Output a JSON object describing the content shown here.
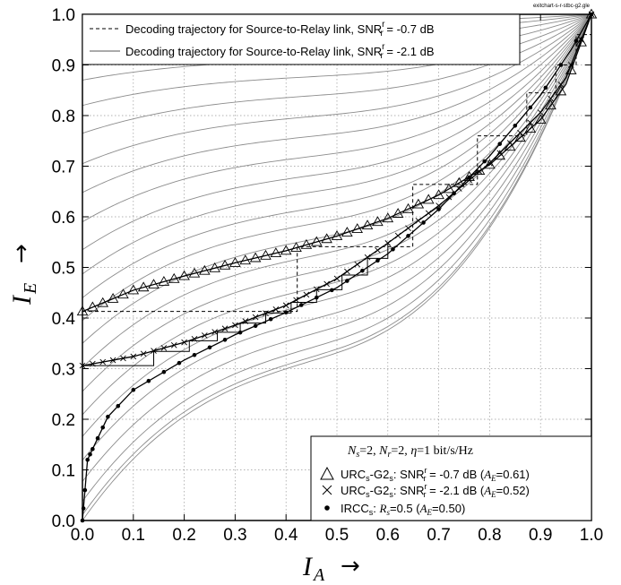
{
  "chart_data": {
    "type": "line",
    "title": "",
    "file_tag": "exitchart-s-r-stbc-g2.gle",
    "xlabel": {
      "symbol": "I",
      "subscript": "A",
      "arrow": "→"
    },
    "ylabel": {
      "symbol": "I",
      "subscript": "E",
      "arrow": "→"
    },
    "xlim": [
      0.0,
      1.0
    ],
    "ylim": [
      0.0,
      1.0
    ],
    "xticks": [
      "0.0",
      "0.1",
      "0.2",
      "0.3",
      "0.4",
      "0.5",
      "0.6",
      "0.7",
      "0.8",
      "0.9",
      "1.0"
    ],
    "yticks": [
      "0.0",
      "0.1",
      "0.2",
      "0.3",
      "0.4",
      "0.5",
      "0.6",
      "0.7",
      "0.8",
      "0.9",
      "1.0"
    ],
    "grid": true,
    "legend_top": {
      "placement": "top-left",
      "entries": [
        {
          "text": "Decoding trajectory for Source-to-Relay link, SNR",
          "sup": "r",
          "sub": "r",
          "tail": " = -0.7 dB",
          "style": "dashed"
        },
        {
          "text": "Decoding trajectory for Source-to-Relay link, SNR",
          "sup": "r",
          "sub": "r",
          "tail": " = -2.1 dB",
          "style": "solid"
        }
      ]
    },
    "legend_bottom": {
      "placement": "bottom-right",
      "header": {
        "ns": "N",
        "ns_sub": "s",
        "ns_val": "=2, ",
        "nr": "N",
        "nr_sub": "r",
        "nr_val": "=2, ",
        "eta": "η",
        "eta_val": "=1 bit/s/Hz"
      },
      "entries": [
        {
          "marker": "triangle",
          "name": "URC",
          "name_sub": "s",
          "mid": "-G2",
          "mid_sub": "s",
          "snr": ": SNR",
          "snr_sup": "r",
          "snr_sub": "r",
          "val": " = -0.7 dB (",
          "ae": "A",
          "ae_sub": "E",
          "ae_val": "=0.61)"
        },
        {
          "marker": "cross",
          "name": "URC",
          "name_sub": "s",
          "mid": "-G2",
          "mid_sub": "s",
          "snr": ": SNR",
          "snr_sup": "r",
          "snr_sub": "r",
          "val": " = -2.1 dB (",
          "ae": "A",
          "ae_sub": "E",
          "ae_val": "=0.52)"
        },
        {
          "marker": "dot",
          "name": "IRCC",
          "name_sub": "s",
          "mid": ": ",
          "rs": "R",
          "rs_sub": "s",
          "rs_val": "=0.5 (",
          "ae": "A",
          "ae_sub": "E",
          "ae_val": "=0.50)"
        }
      ]
    },
    "series": [
      {
        "name": "URCs-G2s: SNRrr = -0.7 dB",
        "marker": "triangle",
        "points": [
          [
            0.0,
            0.413
          ],
          [
            0.1,
            0.455
          ],
          [
            0.2,
            0.483
          ],
          [
            0.3,
            0.509
          ],
          [
            0.4,
            0.533
          ],
          [
            0.5,
            0.562
          ],
          [
            0.6,
            0.597
          ],
          [
            0.7,
            0.643
          ],
          [
            0.8,
            0.703
          ],
          [
            0.9,
            0.792
          ],
          [
            0.95,
            0.862
          ],
          [
            1.0,
            1.0
          ]
        ]
      },
      {
        "name": "URCs-G2s: SNRrr = -2.1 dB",
        "marker": "cross",
        "points": [
          [
            0.0,
            0.306
          ],
          [
            0.1,
            0.324
          ],
          [
            0.2,
            0.352
          ],
          [
            0.3,
            0.386
          ],
          [
            0.4,
            0.425
          ],
          [
            0.5,
            0.478
          ],
          [
            0.6,
            0.548
          ],
          [
            0.7,
            0.622
          ],
          [
            0.8,
            0.706
          ],
          [
            0.9,
            0.806
          ],
          [
            0.95,
            0.875
          ],
          [
            1.0,
            1.0
          ]
        ]
      },
      {
        "name": "IRCCs: Rs=0.5",
        "marker": "dot",
        "points": [
          [
            0.0,
            0.0
          ],
          [
            0.01,
            0.12
          ],
          [
            0.05,
            0.205
          ],
          [
            0.1,
            0.258
          ],
          [
            0.2,
            0.317
          ],
          [
            0.3,
            0.367
          ],
          [
            0.4,
            0.411
          ],
          [
            0.5,
            0.46
          ],
          [
            0.6,
            0.527
          ],
          [
            0.7,
            0.615
          ],
          [
            0.8,
            0.72
          ],
          [
            0.9,
            0.84
          ],
          [
            0.96,
            0.93
          ],
          [
            1.0,
            1.0
          ]
        ]
      },
      {
        "name": "Decoding trajectory -0.7 dB",
        "style": "dashed",
        "points": [
          [
            0.0,
            0.413
          ],
          [
            0.422,
            0.413
          ],
          [
            0.422,
            0.541
          ],
          [
            0.649,
            0.541
          ],
          [
            0.649,
            0.664
          ],
          [
            0.776,
            0.664
          ],
          [
            0.776,
            0.76
          ],
          [
            0.873,
            0.76
          ],
          [
            0.873,
            0.845
          ],
          [
            0.93,
            0.845
          ],
          [
            0.93,
            0.9
          ],
          [
            0.97,
            0.9
          ],
          [
            0.97,
            0.96
          ],
          [
            1.0,
            0.96
          ],
          [
            1.0,
            1.0
          ]
        ]
      },
      {
        "name": "Decoding trajectory -2.1 dB",
        "style": "solid",
        "points": [
          [
            0.0,
            0.306
          ],
          [
            0.14,
            0.306
          ],
          [
            0.14,
            0.334
          ],
          [
            0.21,
            0.334
          ],
          [
            0.21,
            0.355
          ],
          [
            0.265,
            0.355
          ],
          [
            0.265,
            0.372
          ],
          [
            0.31,
            0.372
          ],
          [
            0.31,
            0.39
          ],
          [
            0.36,
            0.39
          ],
          [
            0.36,
            0.41
          ],
          [
            0.41,
            0.41
          ],
          [
            0.41,
            0.431
          ],
          [
            0.46,
            0.431
          ],
          [
            0.46,
            0.456
          ],
          [
            0.51,
            0.456
          ],
          [
            0.51,
            0.485
          ],
          [
            0.56,
            0.485
          ],
          [
            0.56,
            0.518
          ],
          [
            0.6,
            0.518
          ],
          [
            0.6,
            0.548
          ]
        ]
      }
    ],
    "background_curves": {
      "family": "URC EXIT curves for varying SNR",
      "y0_values": [
        0.0,
        0.011,
        0.038,
        0.077,
        0.119,
        0.166,
        0.209,
        0.255,
        0.302,
        0.35,
        0.395,
        0.44,
        0.487,
        0.535,
        0.59,
        0.648,
        0.705,
        0.765,
        0.82,
        0.87,
        0.915,
        0.95,
        0.975
      ]
    }
  }
}
